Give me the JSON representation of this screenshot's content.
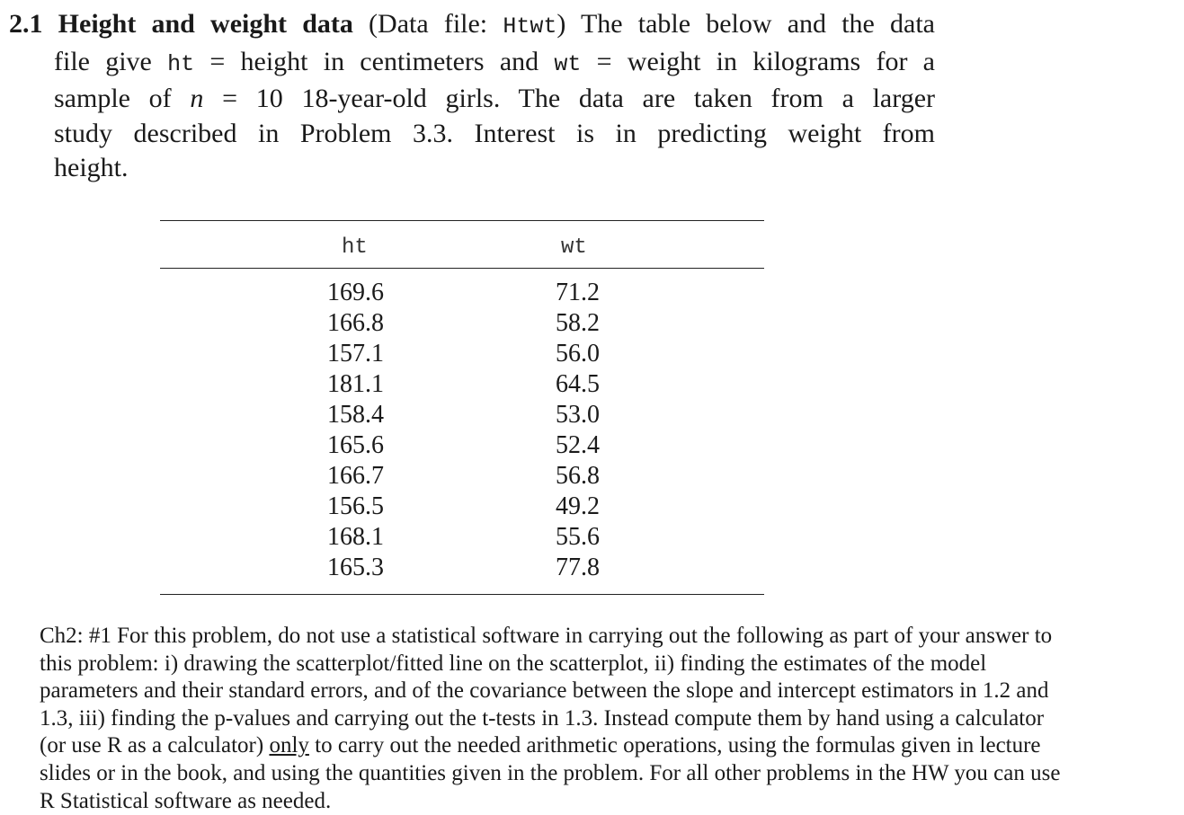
{
  "problem": {
    "number": "2.1",
    "title": "Height and weight data",
    "line1_open": " (Data file: ",
    "datafile": "Htwt",
    "line1_close": ") The table below and the data",
    "line2_a": "file give ",
    "var_ht": "ht",
    "line2_b": " = height in centimeters and ",
    "var_wt": "wt",
    "line2_c": " = weight in kilograms for a",
    "line3_a": "sample of ",
    "var_n": "n",
    "line3_b": " = 10 18-year-old girls. The data are taken from a larger",
    "line4": "study described in Problem 3.3. Interest is in predicting weight from",
    "line5": "height."
  },
  "table": {
    "headers": [
      "ht",
      "wt"
    ],
    "rows": [
      [
        "169.6",
        "71.2"
      ],
      [
        "166.8",
        "58.2"
      ],
      [
        "157.1",
        "56.0"
      ],
      [
        "181.1",
        "64.5"
      ],
      [
        "158.4",
        "53.0"
      ],
      [
        "165.6",
        "52.4"
      ],
      [
        "166.7",
        "56.8"
      ],
      [
        "156.5",
        "49.2"
      ],
      [
        "168.1",
        "55.6"
      ],
      [
        "165.3",
        "77.8"
      ]
    ]
  },
  "note": {
    "line1": "Ch2: #1 For this problem, do not use a statistical software in carrying out the following as part of your answer to",
    "line2": "this problem: i) drawing the scatterplot/fitted line on the scatterplot, ii) finding the estimates of the model",
    "line3": "parameters and their standard errors, and of the covariance between the slope and intercept estimators in 1.2 and",
    "line4": "1.3, iii) finding the p-values and carrying out the t-tests in 1.3. Instead compute them by hand using a calculator",
    "line5_a": "(or use R as a calculator) ",
    "line5_underlined": "only",
    "line5_b": " to carry out the needed arithmetic operations, using the formulas given in lecture",
    "line6": "slides or in the book, and using the quantities given in the problem. For all other problems in the HW you can use",
    "line7": "R Statistical software as needed."
  }
}
